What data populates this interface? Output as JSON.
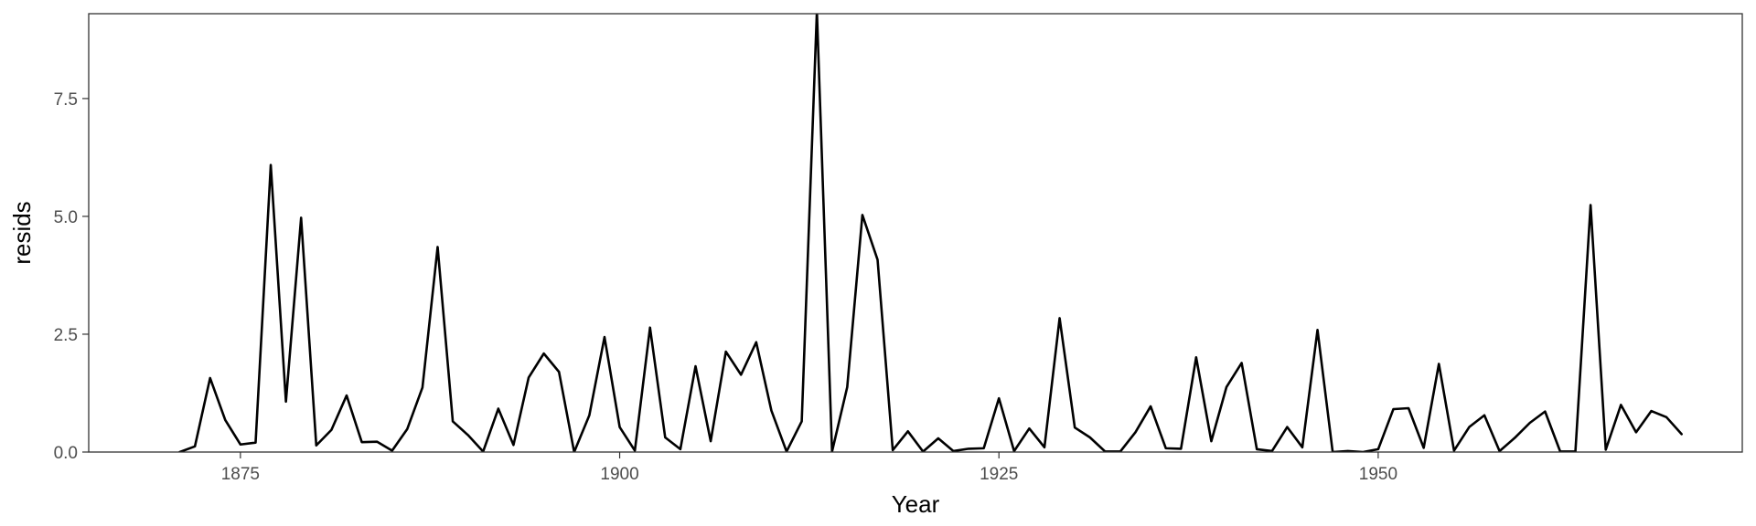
{
  "chart_data": {
    "type": "line",
    "title": "",
    "xlabel": "Year",
    "ylabel": "resids",
    "xlim": [
      1865,
      1974
    ],
    "ylim": [
      0,
      9.3
    ],
    "grid": false,
    "legend": "none",
    "x_ticks": [
      {
        "value": 1875,
        "label": "1875"
      },
      {
        "value": 1900,
        "label": "1900"
      },
      {
        "value": 1925,
        "label": "1925"
      },
      {
        "value": 1950,
        "label": "1950"
      }
    ],
    "y_ticks": [
      {
        "value": 0,
        "label": "0.0"
      },
      {
        "value": 2.5,
        "label": "2.5"
      },
      {
        "value": 5,
        "label": "5.0"
      },
      {
        "value": 7.5,
        "label": "7.5"
      }
    ],
    "line_color": "#000000",
    "series": [
      {
        "x": [
          1871,
          1872,
          1873,
          1874,
          1875,
          1876,
          1877,
          1878,
          1879,
          1880,
          1881,
          1882,
          1883,
          1884,
          1885,
          1886,
          1887,
          1888,
          1889,
          1890,
          1891,
          1892,
          1893,
          1894,
          1895,
          1896,
          1897,
          1898,
          1899,
          1900,
          1901,
          1902,
          1903,
          1904,
          1905,
          1906,
          1907,
          1908,
          1909,
          1910,
          1911,
          1912,
          1913,
          1914,
          1915,
          1916,
          1917,
          1918,
          1919,
          1920,
          1921,
          1922,
          1923,
          1924,
          1925,
          1926,
          1927,
          1928,
          1929,
          1930,
          1931,
          1932,
          1933,
          1934,
          1935,
          1936,
          1937,
          1938,
          1939,
          1940,
          1941,
          1942,
          1943,
          1944,
          1945,
          1946,
          1947,
          1948,
          1949,
          1950,
          1951,
          1952,
          1953,
          1954,
          1955,
          1956,
          1957,
          1958,
          1959,
          1960,
          1961,
          1962,
          1963,
          1964,
          1965,
          1966,
          1967,
          1968,
          1969,
          1970
        ],
        "values": [
          0.0,
          0.12,
          1.57,
          0.68,
          0.16,
          0.2,
          6.09,
          1.07,
          4.97,
          0.14,
          0.47,
          1.2,
          0.21,
          0.22,
          0.03,
          0.49,
          1.37,
          4.35,
          0.65,
          0.36,
          0.01,
          0.92,
          0.15,
          1.58,
          2.09,
          1.7,
          0.0,
          0.78,
          2.44,
          0.53,
          0.03,
          2.64,
          0.31,
          0.06,
          1.82,
          0.23,
          2.13,
          1.64,
          2.33,
          0.88,
          0.01,
          0.65,
          9.35,
          0.01,
          1.38,
          5.03,
          4.08,
          0.04,
          0.44,
          0.01,
          0.29,
          0.02,
          0.07,
          0.08,
          1.14,
          0.02,
          0.5,
          0.1,
          2.84,
          0.52,
          0.31,
          0.01,
          0.01,
          0.42,
          0.97,
          0.08,
          0.07,
          2.01,
          0.23,
          1.38,
          1.89,
          0.06,
          0.02,
          0.53,
          0.1,
          2.59,
          0.0,
          0.02,
          0.0,
          0.06,
          0.91,
          0.93,
          0.09,
          1.87,
          0.03,
          0.53,
          0.78,
          0.02,
          0.3,
          0.62,
          0.86,
          0.01,
          0.01,
          5.24,
          0.05,
          1.0,
          0.42,
          0.87,
          0.74,
          0.38
        ]
      }
    ]
  }
}
